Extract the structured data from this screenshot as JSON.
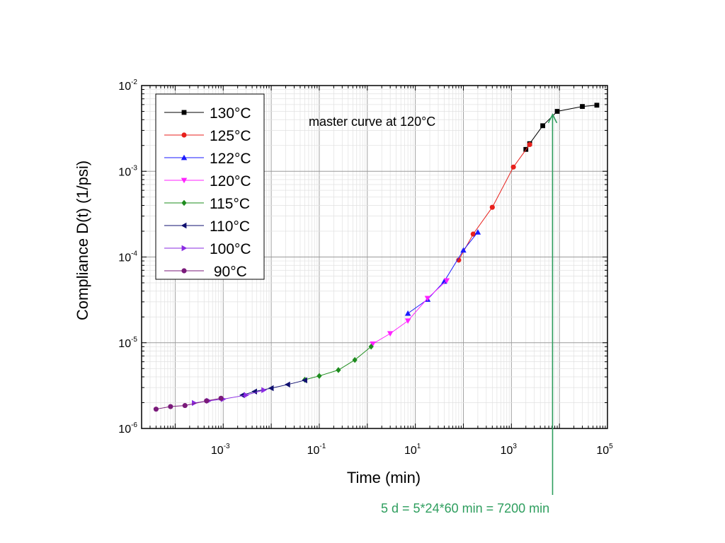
{
  "chart_data": {
    "type": "scatter",
    "xlabel": "Time (min)",
    "ylabel": "Compliance D(t) (1/psi)",
    "xscale": "log",
    "yscale": "log",
    "xlim": [
      2e-05,
      100000
    ],
    "ylim": [
      1e-06,
      0.01
    ],
    "x_ticks": [
      {
        "base": "10",
        "exp": "-3",
        "value": 0.001
      },
      {
        "base": "10",
        "exp": "-1",
        "value": 0.1
      },
      {
        "base": "10",
        "exp": "1",
        "value": 10
      },
      {
        "base": "10",
        "exp": "3",
        "value": 1000
      },
      {
        "base": "10",
        "exp": "5",
        "value": 100000
      }
    ],
    "y_ticks": [
      {
        "base": "10",
        "exp": "-6",
        "value": 1e-06
      },
      {
        "base": "10",
        "exp": "-5",
        "value": 1e-05
      },
      {
        "base": "10",
        "exp": "-4",
        "value": 0.0001
      },
      {
        "base": "10",
        "exp": "-3",
        "value": 0.001
      },
      {
        "base": "10",
        "exp": "-2",
        "value": 0.01
      }
    ],
    "grid": true,
    "legend_position": "top-left",
    "series": [
      {
        "name": "130°C",
        "color": "#000000",
        "marker": "square",
        "x": [
          2000,
          2400,
          4500,
          9000,
          30000,
          60000
        ],
        "y": [
          0.0018,
          0.0021,
          0.0034,
          0.005,
          0.0057,
          0.0059
        ]
      },
      {
        "name": "125°C",
        "color": "#e8201c",
        "marker": "circle",
        "x": [
          80,
          160,
          400,
          1100,
          2400
        ],
        "y": [
          9.2e-05,
          0.000185,
          0.00038,
          0.00112,
          0.00205
        ]
      },
      {
        "name": "122°C",
        "color": "#1a1aff",
        "marker": "triangle-up",
        "x": [
          7,
          18,
          40,
          100,
          200
        ],
        "y": [
          2.2e-05,
          3.2e-05,
          5.2e-05,
          0.00012,
          0.000195
        ]
      },
      {
        "name": "120°C",
        "color": "#ff22ff",
        "marker": "triangle-down",
        "x": [
          1.3,
          3,
          7,
          18,
          45
        ],
        "y": [
          9.7e-06,
          1.28e-05,
          1.8e-05,
          3.3e-05,
          5.3e-05
        ]
      },
      {
        "name": "115°C",
        "color": "#1e8c1e",
        "marker": "diamond",
        "x": [
          0.05,
          0.1,
          0.25,
          0.55,
          1.2
        ],
        "y": [
          3.7e-06,
          4.1e-06,
          4.8e-06,
          6.3e-06,
          9e-06
        ]
      },
      {
        "name": "110°C",
        "color": "#101070",
        "marker": "triangle-left",
        "x": [
          0.0025,
          0.0045,
          0.01,
          0.022,
          0.05
        ],
        "y": [
          2.45e-06,
          2.7e-06,
          2.95e-06,
          3.25e-06,
          3.65e-06
        ]
      },
      {
        "name": "100°C",
        "color": "#8a2be2",
        "marker": "triangle-right",
        "x": [
          0.00025,
          0.0005,
          0.001,
          0.003,
          0.007
        ],
        "y": [
          1.98e-06,
          2.1e-06,
          2.2e-06,
          2.45e-06,
          2.8e-06
        ]
      },
      {
        "name": " 90°C",
        "color": "#7a1a7a",
        "marker": "circle",
        "x": [
          4e-05,
          8e-05,
          0.00016,
          0.00045,
          0.0009
        ],
        "y": [
          1.68e-06,
          1.8e-06,
          1.85e-06,
          2.1e-06,
          2.25e-06
        ]
      }
    ],
    "annotations": [
      {
        "text": "master curve at 120°C"
      },
      {
        "text": "5 d = 5*24*60 min = 7200 min",
        "x": 7200,
        "y": 0.0046,
        "color": "#2e9e5e"
      }
    ]
  }
}
